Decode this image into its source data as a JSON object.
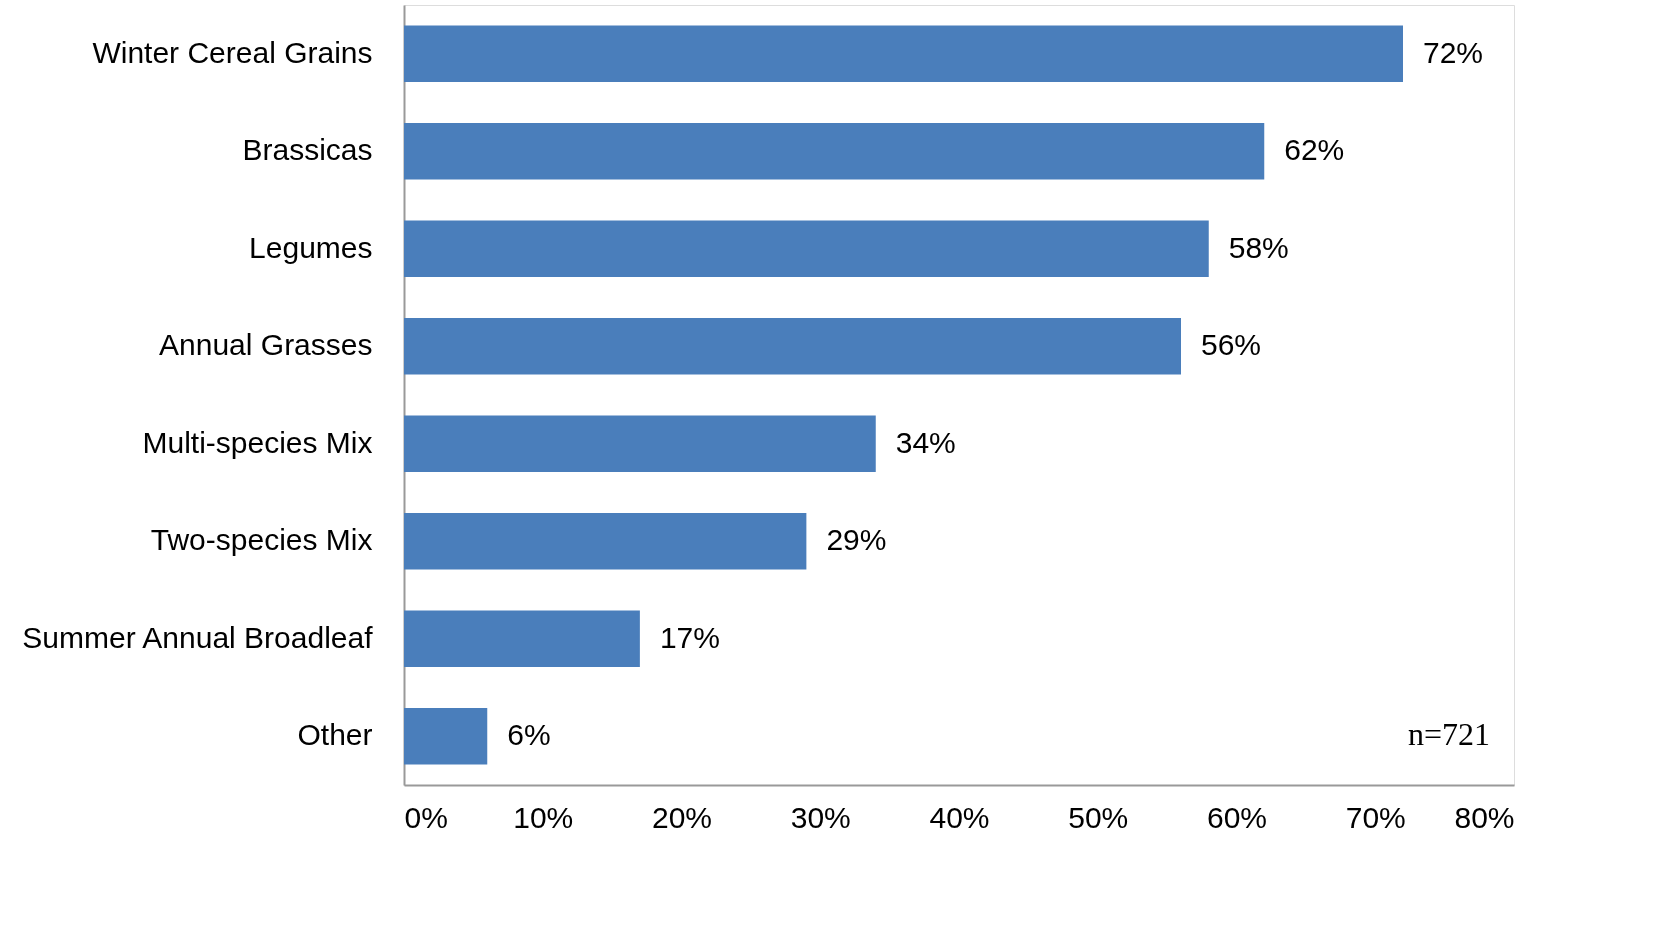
{
  "chart_data": {
    "type": "bar",
    "orientation": "horizontal",
    "categories": [
      "Winter Cereal Grains",
      "Brassicas",
      "Legumes",
      "Annual Grasses",
      "Multi-species Mix",
      "Two-species Mix",
      "Summer Annual Broadleaf",
      "Other"
    ],
    "values": [
      72,
      62,
      58,
      56,
      34,
      29,
      17,
      6
    ],
    "value_labels": [
      "72%",
      "62%",
      "58%",
      "56%",
      "34%",
      "29%",
      "17%",
      "6%"
    ],
    "color": "#4a7ebb",
    "xlim": [
      0,
      80
    ],
    "xticks": [
      {
        "value": 0,
        "label": "0%"
      },
      {
        "value": 10,
        "label": "10%"
      },
      {
        "value": 20,
        "label": "20%"
      },
      {
        "value": 30,
        "label": "30%"
      },
      {
        "value": 40,
        "label": "40%"
      },
      {
        "value": 50,
        "label": "50%"
      },
      {
        "value": 60,
        "label": "60%"
      },
      {
        "value": 70,
        "label": "70%"
      },
      {
        "value": 80,
        "label": "80%"
      }
    ],
    "grid": false,
    "annotations": [
      "n=721"
    ]
  }
}
